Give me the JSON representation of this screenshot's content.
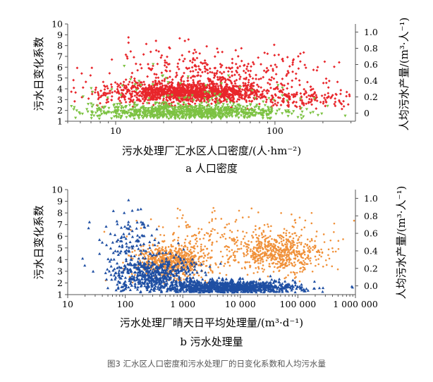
{
  "caption": "图3 汇水区人口密度和污水处理厂的日变化系数和人均污水量",
  "chart_data": [
    {
      "type": "scatter",
      "subtitle": "a 人口密度",
      "xlabel": "污水处理厂汇水区人口密度/(人·hm⁻²)",
      "ylabel_left": "污水日变化系数",
      "ylabel_right": "人均污水产量/(m³·人⁻¹)",
      "x_scale": "log",
      "xlim": [
        5,
        320
      ],
      "ylim_left": [
        1,
        10
      ],
      "ylim_right": [
        -0.1,
        1.1
      ],
      "x_ticks": [
        10,
        100
      ],
      "x_tick_labels": [
        "10",
        "100"
      ],
      "y_left_ticks": [
        1,
        2,
        3,
        4,
        5,
        6,
        7,
        8,
        9,
        10
      ],
      "y_right_ticks": [
        0,
        0.2,
        0.4,
        0.6,
        0.8,
        1.0
      ],
      "y_right_tick_labels": [
        "0",
        "0.2",
        "0.4",
        "0.6",
        "0.8",
        "1.0"
      ],
      "series": [
        {
          "axis": "right",
          "marker": "diamond",
          "color": "#e8262b",
          "clusters": [
            {
              "x_log_mean": 1.45,
              "x_log_sd": 0.25,
              "y_mean": 0.25,
              "y_sd": 0.06,
              "count": 1200
            },
            {
              "x_log_mean": 1.6,
              "x_log_sd": 0.35,
              "y_mean": 0.42,
              "y_sd": 0.18,
              "count": 480
            },
            {
              "x_log_mean": 2.2,
              "x_log_sd": 0.2,
              "y_mean": 0.18,
              "y_sd": 0.08,
              "count": 160
            }
          ],
          "y_clip": [
            0.05,
            1.0
          ]
        },
        {
          "axis": "left",
          "marker": "triangle-down",
          "color": "#7cc242",
          "clusters": [
            {
              "x_log_mean": 1.45,
              "x_log_sd": 0.3,
              "y_mean": 1.85,
              "y_sd": 0.35,
              "count": 900
            },
            {
              "x_log_mean": 1.5,
              "x_log_sd": 0.4,
              "y_mean": 2.8,
              "y_sd": 1.4,
              "count": 110
            }
          ],
          "y_clip": [
            1.2,
            9.3
          ]
        }
      ]
    },
    {
      "type": "scatter",
      "subtitle": "b 污水处理量",
      "xlabel": "污水处理厂晴天日平均处理量/(m³·d⁻¹)",
      "ylabel_left": "污水日变化系数",
      "ylabel_right": "人均污水产量/(m³·人⁻¹)",
      "x_scale": "log",
      "xlim": [
        10,
        1000000
      ],
      "ylim_left": [
        1,
        10
      ],
      "ylim_right": [
        -0.1,
        1.1
      ],
      "x_ticks": [
        10,
        100,
        1000,
        10000,
        100000,
        1000000
      ],
      "x_tick_labels": [
        "10",
        "100",
        "1 000",
        "10 000",
        "100 000",
        "1 000 000"
      ],
      "y_left_ticks": [
        1,
        2,
        3,
        4,
        5,
        6,
        7,
        8,
        9,
        10
      ],
      "y_right_ticks": [
        0,
        0.2,
        0.4,
        0.6,
        0.8,
        1.0
      ],
      "y_right_tick_labels": [
        "0.0",
        "0.2",
        "0.4",
        "0.6",
        "0.8",
        "1.0"
      ],
      "series": [
        {
          "axis": "right",
          "marker": "circle",
          "color": "#f0913a",
          "clusters": [
            {
              "x_log_mean": 2.8,
              "x_log_sd": 0.3,
              "y_mean": 0.28,
              "y_sd": 0.09,
              "count": 700
            },
            {
              "x_log_mean": 4.7,
              "x_log_sd": 0.35,
              "y_mean": 0.38,
              "y_sd": 0.1,
              "count": 500
            },
            {
              "x_log_mean": 3.8,
              "x_log_sd": 0.9,
              "y_mean": 0.45,
              "y_sd": 0.22,
              "count": 320
            }
          ],
          "y_clip": [
            0.02,
            0.9
          ]
        },
        {
          "axis": "left",
          "marker": "triangle-up",
          "color": "#1f4fa3",
          "clusters": [
            {
              "x_log_mean": 3.8,
              "x_log_sd": 0.6,
              "y_mean": 1.6,
              "y_sd": 0.3,
              "count": 1100
            },
            {
              "x_log_mean": 2.5,
              "x_log_sd": 0.35,
              "y_mean": 2.7,
              "y_sd": 0.8,
              "count": 450
            },
            {
              "x_log_mean": 2.1,
              "x_log_sd": 0.3,
              "y_mean": 4.8,
              "y_sd": 1.8,
              "count": 160
            }
          ],
          "y_clip": [
            1.2,
            9.3
          ]
        }
      ]
    }
  ]
}
